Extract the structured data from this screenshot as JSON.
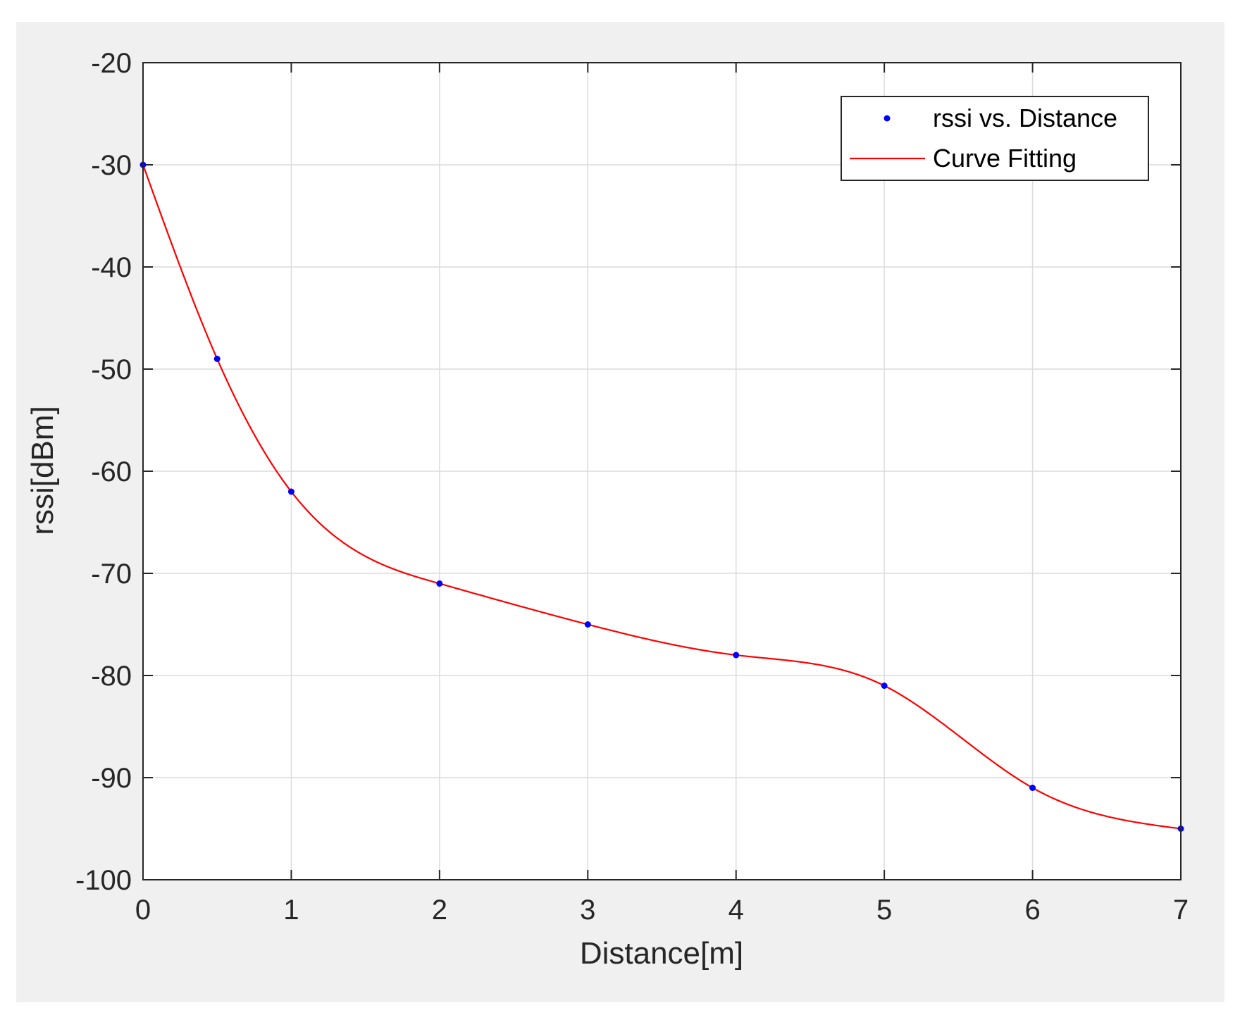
{
  "chart_data": {
    "type": "scatter",
    "xlabel": "Distance[m]",
    "ylabel": "rssi[dBm]",
    "xlim": [
      0,
      7
    ],
    "ylim": [
      -100,
      -20
    ],
    "xticks": [
      "0",
      "1",
      "2",
      "3",
      "4",
      "5",
      "6",
      "7"
    ],
    "yticks": [
      "-20",
      "-30",
      "-40",
      "-50",
      "-60",
      "-70",
      "-80",
      "-90",
      "-100"
    ],
    "grid": true,
    "legend_position": "top-right",
    "series": [
      {
        "name": "rssi vs. Distance",
        "kind": "markers",
        "color": "#0000ff",
        "x": [
          0,
          0.5,
          1,
          2,
          3,
          4,
          5,
          6,
          7
        ],
        "y": [
          -30,
          -49,
          -62,
          -71,
          -75,
          -78,
          -81,
          -91,
          -95
        ]
      },
      {
        "name": "Curve Fitting",
        "kind": "line",
        "color": "#ff0000",
        "x": [
          0,
          0.5,
          1,
          2,
          3,
          4,
          5,
          6,
          7
        ],
        "y": [
          -30,
          -49,
          -62,
          -71,
          -75,
          -78,
          -81,
          -91,
          -95
        ]
      }
    ]
  }
}
